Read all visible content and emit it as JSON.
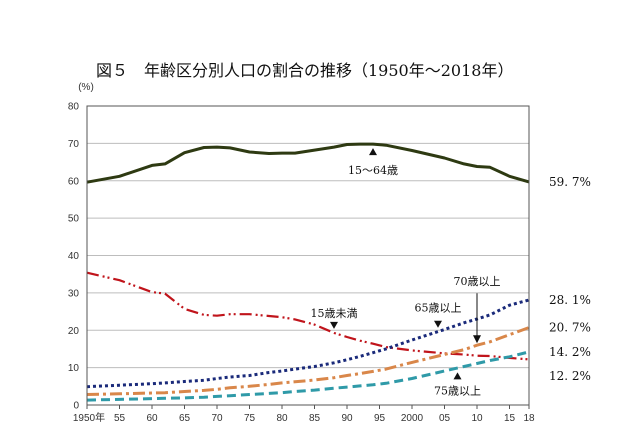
{
  "chart_data": {
    "type": "line",
    "title": "図５　年齢区分別人口の割合の推移（1950年～2018年）",
    "ylabel": "(%)",
    "ylim": [
      0,
      80
    ],
    "yticks": [
      "0",
      "10",
      "20",
      "30",
      "40",
      "50",
      "60",
      "70",
      "80"
    ],
    "xlim": [
      1950,
      2018
    ],
    "xticks": [
      {
        "value": 1950,
        "label": "1950年"
      },
      {
        "value": 1955,
        "label": "55"
      },
      {
        "value": 1960,
        "label": "60"
      },
      {
        "value": 1965,
        "label": "65"
      },
      {
        "value": 1970,
        "label": "70"
      },
      {
        "value": 1975,
        "label": "75"
      },
      {
        "value": 1980,
        "label": "80"
      },
      {
        "value": 1985,
        "label": "85"
      },
      {
        "value": 1990,
        "label": "90"
      },
      {
        "value": 1995,
        "label": "95"
      },
      {
        "value": 2000,
        "label": "2000"
      },
      {
        "value": 2005,
        "label": "05"
      },
      {
        "value": 2010,
        "label": "10"
      },
      {
        "value": 2015,
        "label": "15"
      },
      {
        "value": 2018,
        "label": "18"
      }
    ],
    "grid": true,
    "x": [
      1950,
      1955,
      1960,
      1962,
      1965,
      1968,
      1970,
      1972,
      1975,
      1978,
      1980,
      1982,
      1985,
      1988,
      1990,
      1992,
      1994,
      1996,
      2000,
      2005,
      2008,
      2010,
      2012,
      2015,
      2018
    ],
    "series": [
      {
        "name": "15～64歳",
        "color": "#2e3a12",
        "style": "solid",
        "values": [
          59.6,
          61.2,
          64.1,
          64.5,
          67.5,
          68.9,
          69.0,
          68.8,
          67.7,
          67.3,
          67.4,
          67.4,
          68.2,
          69.0,
          69.7,
          69.8,
          69.8,
          69.5,
          68.1,
          66.1,
          64.5,
          63.8,
          63.6,
          61.2,
          59.7
        ],
        "end_label": "59. 7%"
      },
      {
        "name": "15歳未満",
        "color": "#c0141b",
        "style": "dashdotdot",
        "values": [
          35.4,
          33.4,
          30.2,
          29.8,
          25.7,
          24.1,
          23.9,
          24.3,
          24.3,
          23.8,
          23.5,
          22.9,
          21.5,
          19.3,
          18.2,
          17.2,
          16.4,
          15.5,
          14.6,
          13.8,
          13.5,
          13.2,
          13.1,
          12.6,
          12.2
        ],
        "end_label": "12. 2%"
      },
      {
        "name": "65歳以上",
        "color": "#1a2a7a",
        "style": "dotted",
        "values": [
          4.9,
          5.3,
          5.7,
          5.9,
          6.3,
          6.6,
          7.1,
          7.5,
          7.9,
          8.7,
          9.1,
          9.6,
          10.3,
          11.3,
          12.1,
          13.0,
          14.0,
          15.0,
          17.4,
          20.2,
          22.0,
          23.0,
          24.1,
          26.7,
          28.1
        ],
        "end_label": "28. 1%"
      },
      {
        "name": "70歳以上",
        "color": "#d9874a",
        "style": "dashdot",
        "values": [
          2.8,
          3.0,
          3.2,
          3.3,
          3.6,
          3.9,
          4.2,
          4.6,
          5.0,
          5.5,
          5.9,
          6.2,
          6.7,
          7.3,
          7.9,
          8.4,
          9.0,
          9.6,
          11.4,
          13.5,
          14.8,
          16.0,
          16.9,
          18.8,
          20.7
        ],
        "end_label": "20. 7%"
      },
      {
        "name": "75歳以上",
        "color": "#2f9aa8",
        "style": "dashed",
        "values": [
          1.3,
          1.5,
          1.7,
          1.8,
          1.9,
          2.1,
          2.3,
          2.5,
          2.8,
          3.1,
          3.3,
          3.6,
          4.0,
          4.5,
          4.8,
          5.1,
          5.4,
          5.8,
          7.1,
          9.1,
          10.3,
          11.1,
          11.9,
          12.9,
          14.2
        ],
        "end_label": "14. 2%"
      }
    ],
    "annotations": [
      {
        "text": "15～64歳",
        "series": "15～64歳",
        "x": 1994,
        "y": 69.8
      },
      {
        "text": "15歳未満",
        "series": "15歳未満",
        "x": 1988,
        "y": 19.3
      },
      {
        "text": "65歳以上",
        "series": "65歳以上",
        "x": 2004,
        "y": 19.6
      },
      {
        "text": "70歳以上",
        "series": "70歳以上",
        "x": 2010,
        "y": 16.0
      },
      {
        "text": "75歳以上",
        "series": "75歳以上",
        "x": 2007,
        "y": 9.8
      }
    ]
  }
}
